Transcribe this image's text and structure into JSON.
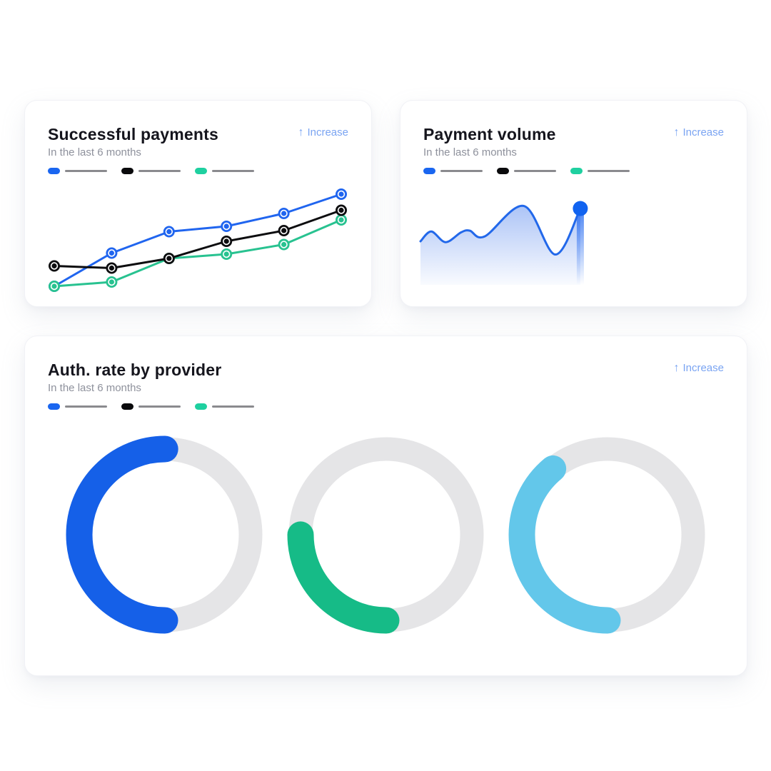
{
  "page": {
    "background": "#ffffff"
  },
  "cards": [
    {
      "title": "Successful payments",
      "subtitle": "In the last 6 months",
      "action": {
        "icon": "↑",
        "label": "Increase"
      }
    },
    {
      "title": "Payment volume",
      "subtitle": "In the last 6 months",
      "action": {
        "icon": "↑",
        "label": "Increase"
      }
    },
    {
      "title": "Auth. rate by provider",
      "subtitle": "In the last 6 months",
      "action": {
        "icon": "↑",
        "label": "Increase"
      }
    }
  ],
  "legend": {
    "line_color": "#8a8a8e",
    "items": [
      {
        "name": "series-blue",
        "color": "#1a66f0"
      },
      {
        "name": "series-black",
        "color": "#0a0a0c"
      },
      {
        "name": "series-green",
        "color": "#1fd0a0"
      }
    ]
  },
  "chart_data": [
    {
      "type": "line",
      "title": "Successful payments",
      "subtitle": "In the last 6 months",
      "x": [
        1,
        2,
        3,
        4,
        5,
        6
      ],
      "xlabel": "",
      "ylabel": "",
      "ylim": [
        0,
        100
      ],
      "grid": false,
      "legend_position": "top",
      "series": [
        {
          "name": "blue-provider",
          "color": "#2065ef",
          "values": [
            6,
            37,
            57,
            62,
            74,
            92
          ]
        },
        {
          "name": "green-provider",
          "color": "#28c290",
          "values": [
            6,
            10,
            32,
            36,
            45,
            68
          ]
        },
        {
          "name": "black-provider",
          "color": "#0d0d0f",
          "values": [
            25,
            23,
            32,
            48,
            58,
            77
          ]
        }
      ]
    },
    {
      "type": "area",
      "title": "Payment volume",
      "subtitle": "In the last 6 months",
      "line_color": "#2268ea",
      "dot_color": "#1163f0",
      "fill_top": "rgba(59,115,235,0.42)",
      "fill_bottom": "rgba(59,115,235,0.03)",
      "ylim": [
        0,
        100
      ],
      "points": [
        {
          "x": 0,
          "y": 53
        },
        {
          "x": 6.6,
          "y": 65
        },
        {
          "x": 15.4,
          "y": 52
        },
        {
          "x": 25,
          "y": 64
        },
        {
          "x": 30.3,
          "y": 66
        },
        {
          "x": 39.5,
          "y": 59
        },
        {
          "x": 63.6,
          "y": 96
        },
        {
          "x": 82.9,
          "y": 37
        },
        {
          "x": 98.2,
          "y": 93
        }
      ]
    },
    {
      "type": "donut",
      "title": "Auth. rate by provider",
      "subtitle": "In the last 6 months",
      "track_color": "#e5e5e7",
      "start_position": "bottom",
      "direction": "counter-clockwise-left",
      "segments": [
        {
          "name": "provider-1",
          "value": 50,
          "color": "#1560e8"
        },
        {
          "name": "provider-2",
          "value": 25,
          "color": "#16bb87"
        },
        {
          "name": "provider-3",
          "value": 39,
          "color": "#63c7ea"
        }
      ]
    }
  ]
}
